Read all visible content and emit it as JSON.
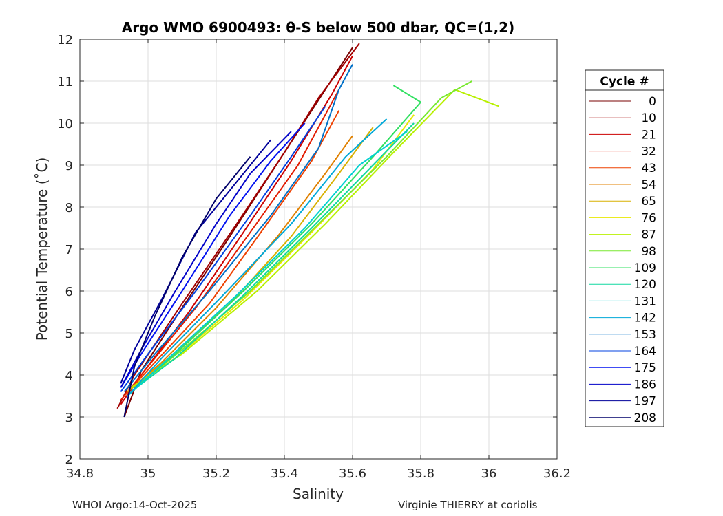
{
  "chart_data": {
    "type": "line",
    "title": "Argo WMO 6900493: θ-S below 500 dbar,  QC=(1,2)",
    "xlabel": "Salinity",
    "ylabel": "Potential Temperature (˚C)",
    "xlim": [
      34.8,
      36.2
    ],
    "ylim": [
      2,
      12
    ],
    "xticks": [
      34.8,
      35,
      35.2,
      35.4,
      35.6,
      35.8,
      36,
      36.2
    ],
    "xtick_labels": [
      "34.8",
      "35",
      "35.2",
      "35.4",
      "35.6",
      "35.8",
      "36",
      "36.2"
    ],
    "yticks": [
      2,
      3,
      4,
      5,
      6,
      7,
      8,
      9,
      10,
      11,
      12
    ],
    "ytick_labels": [
      "2",
      "3",
      "4",
      "5",
      "6",
      "7",
      "8",
      "9",
      "10",
      "11",
      "12"
    ],
    "grid": true,
    "legend_title": "Cycle #",
    "legend_position": "right-outside",
    "series": [
      {
        "name": "0",
        "color": "#7a0000",
        "points": [
          [
            34.93,
            3.0
          ],
          [
            34.98,
            4.1
          ],
          [
            35.1,
            5.6
          ],
          [
            35.24,
            7.3
          ],
          [
            35.36,
            8.8
          ],
          [
            35.48,
            10.3
          ],
          [
            35.6,
            11.8
          ]
        ]
      },
      {
        "name": "10",
        "color": "#a30000",
        "points": [
          [
            34.91,
            3.2
          ],
          [
            34.96,
            4.0
          ],
          [
            35.1,
            5.7
          ],
          [
            35.26,
            7.6
          ],
          [
            35.4,
            9.3
          ],
          [
            35.5,
            10.6
          ],
          [
            35.62,
            11.9
          ]
        ]
      },
      {
        "name": "21",
        "color": "#cc0000",
        "points": [
          [
            34.92,
            3.3
          ],
          [
            34.98,
            4.0
          ],
          [
            35.12,
            5.5
          ],
          [
            35.28,
            7.4
          ],
          [
            35.42,
            9.1
          ],
          [
            35.54,
            10.7
          ],
          [
            35.6,
            11.6
          ]
        ]
      },
      {
        "name": "32",
        "color": "#e21b00",
        "points": [
          [
            34.92,
            3.4
          ],
          [
            35.0,
            4.2
          ],
          [
            35.14,
            5.6
          ],
          [
            35.3,
            7.4
          ],
          [
            35.44,
            9.0
          ],
          [
            35.56,
            10.8
          ]
        ]
      },
      {
        "name": "43",
        "color": "#ee4000",
        "points": [
          [
            34.93,
            3.5
          ],
          [
            35.02,
            4.3
          ],
          [
            35.18,
            5.7
          ],
          [
            35.34,
            7.5
          ],
          [
            35.48,
            9.1
          ],
          [
            35.56,
            10.3
          ]
        ]
      },
      {
        "name": "54",
        "color": "#e08000",
        "points": [
          [
            34.94,
            3.6
          ],
          [
            35.04,
            4.3
          ],
          [
            35.2,
            5.6
          ],
          [
            35.38,
            7.3
          ],
          [
            35.52,
            8.8
          ],
          [
            35.6,
            9.7
          ]
        ]
      },
      {
        "name": "65",
        "color": "#d8b000",
        "points": [
          [
            34.94,
            3.6
          ],
          [
            35.06,
            4.4
          ],
          [
            35.24,
            5.7
          ],
          [
            35.42,
            7.3
          ],
          [
            35.56,
            8.8
          ],
          [
            35.66,
            9.9
          ]
        ]
      },
      {
        "name": "76",
        "color": "#e8e800",
        "points": [
          [
            34.95,
            3.7
          ],
          [
            35.08,
            4.4
          ],
          [
            35.28,
            5.8
          ],
          [
            35.48,
            7.4
          ],
          [
            35.66,
            8.9
          ],
          [
            35.78,
            10.2
          ]
        ]
      },
      {
        "name": "87",
        "color": "#b8f000",
        "points": [
          [
            34.95,
            3.7
          ],
          [
            35.1,
            4.5
          ],
          [
            35.32,
            6.0
          ],
          [
            35.52,
            7.6
          ],
          [
            35.72,
            9.3
          ],
          [
            35.9,
            10.8
          ],
          [
            36.03,
            10.4
          ]
        ]
      },
      {
        "name": "98",
        "color": "#78e830",
        "points": [
          [
            34.96,
            3.7
          ],
          [
            35.1,
            4.6
          ],
          [
            35.3,
            6.0
          ],
          [
            35.5,
            7.6
          ],
          [
            35.7,
            9.2
          ],
          [
            35.86,
            10.6
          ],
          [
            35.95,
            11.0
          ]
        ]
      },
      {
        "name": "109",
        "color": "#30e060",
        "points": [
          [
            34.95,
            3.6
          ],
          [
            35.08,
            4.5
          ],
          [
            35.28,
            6.0
          ],
          [
            35.48,
            7.6
          ],
          [
            35.66,
            9.2
          ],
          [
            35.8,
            10.5
          ],
          [
            35.72,
            10.9
          ]
        ]
      },
      {
        "name": "120",
        "color": "#10d8a0",
        "points": [
          [
            34.95,
            3.6
          ],
          [
            35.08,
            4.4
          ],
          [
            35.28,
            5.9
          ],
          [
            35.48,
            7.5
          ],
          [
            35.66,
            9.0
          ],
          [
            35.78,
            10.0
          ]
        ]
      },
      {
        "name": "131",
        "color": "#00d0d0",
        "points": [
          [
            34.94,
            3.5
          ],
          [
            35.06,
            4.4
          ],
          [
            35.26,
            5.9
          ],
          [
            35.46,
            7.5
          ],
          [
            35.62,
            9.0
          ],
          [
            35.76,
            9.8
          ]
        ]
      },
      {
        "name": "142",
        "color": "#00a8d8",
        "points": [
          [
            34.94,
            3.5
          ],
          [
            35.04,
            4.4
          ],
          [
            35.22,
            5.9
          ],
          [
            35.42,
            7.6
          ],
          [
            35.58,
            9.2
          ],
          [
            35.7,
            10.1
          ]
        ]
      },
      {
        "name": "153",
        "color": "#0070c8",
        "points": [
          [
            34.93,
            3.6
          ],
          [
            35.02,
            4.5
          ],
          [
            35.18,
            6.0
          ],
          [
            35.36,
            7.8
          ],
          [
            35.5,
            9.4
          ],
          [
            35.56,
            10.8
          ],
          [
            35.6,
            11.4
          ]
        ]
      },
      {
        "name": "164",
        "color": "#0040e0",
        "points": [
          [
            34.92,
            3.6
          ],
          [
            35.0,
            4.5
          ],
          [
            35.14,
            6.0
          ],
          [
            35.3,
            7.8
          ],
          [
            35.42,
            9.2
          ],
          [
            35.52,
            10.4
          ]
        ]
      },
      {
        "name": "175",
        "color": "#0010f0",
        "points": [
          [
            34.92,
            3.7
          ],
          [
            34.98,
            4.5
          ],
          [
            35.1,
            6.0
          ],
          [
            35.24,
            7.8
          ],
          [
            35.36,
            9.1
          ],
          [
            35.46,
            10.0
          ]
        ]
      },
      {
        "name": "186",
        "color": "#0000c8",
        "points": [
          [
            34.92,
            3.7
          ],
          [
            34.98,
            4.6
          ],
          [
            35.08,
            6.0
          ],
          [
            35.2,
            7.6
          ],
          [
            35.3,
            8.8
          ],
          [
            35.42,
            9.8
          ]
        ]
      },
      {
        "name": "197",
        "color": "#00009a",
        "points": [
          [
            34.92,
            3.8
          ],
          [
            34.96,
            4.6
          ],
          [
            35.04,
            5.8
          ],
          [
            35.14,
            7.4
          ],
          [
            35.26,
            8.6
          ],
          [
            35.36,
            9.6
          ]
        ]
      },
      {
        "name": "208",
        "color": "#00006a",
        "points": [
          [
            34.93,
            3.0
          ],
          [
            34.96,
            4.2
          ],
          [
            35.02,
            5.4
          ],
          [
            35.1,
            6.8
          ],
          [
            35.2,
            8.2
          ],
          [
            35.3,
            9.2
          ]
        ]
      }
    ]
  },
  "footer": {
    "left": "WHOI Argo:14-Oct-2025",
    "right": "Virginie THIERRY at coriolis"
  }
}
